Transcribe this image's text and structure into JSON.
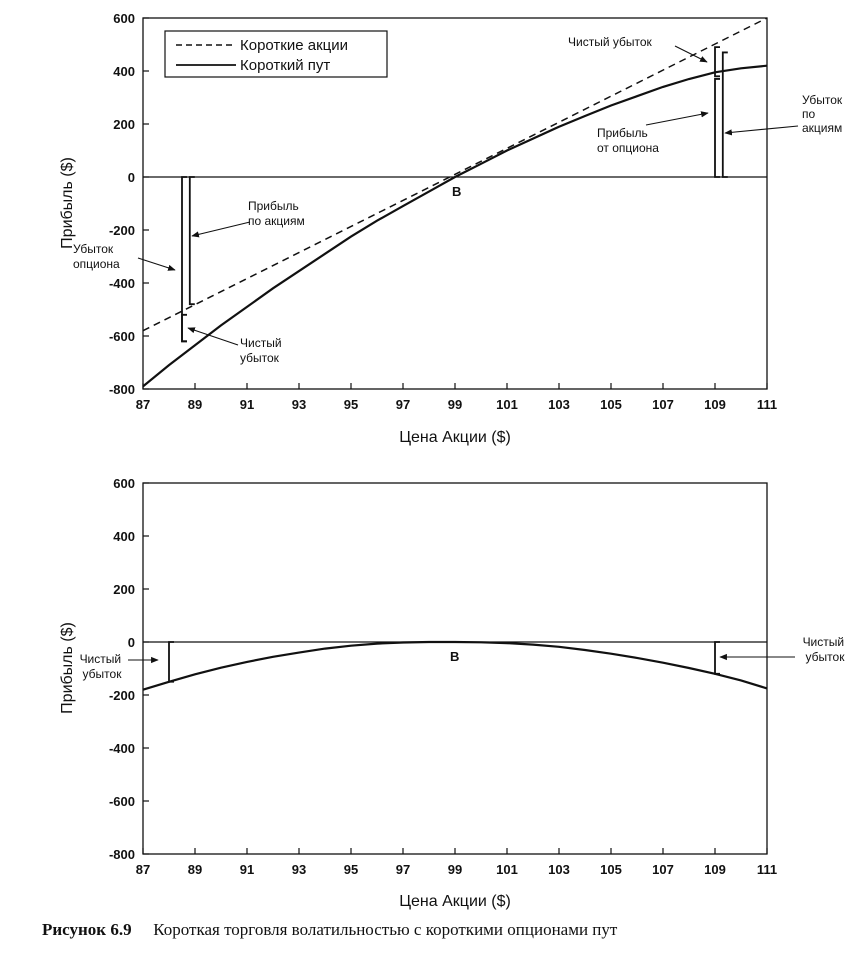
{
  "caption": {
    "number": "Рисунок 6.9",
    "text": "Короткая торговля волатильностью с короткими опционами пут"
  },
  "chart_data": [
    {
      "type": "line",
      "xlabel": "Цена Акции ($)",
      "ylabel": "Прибыль ($)",
      "xlim": [
        87,
        111
      ],
      "ylim": [
        -800,
        600
      ],
      "xticks": [
        "87",
        "89",
        "91",
        "93",
        "95",
        "97",
        "99",
        "101",
        "103",
        "105",
        "107",
        "109",
        "111"
      ],
      "yticks": [
        "600",
        "400",
        "200",
        "0",
        "-200",
        "-400",
        "-600",
        "-800"
      ],
      "legend": {
        "position": "top-left",
        "entries": [
          {
            "label": "Короткие акции",
            "style": "dashed"
          },
          {
            "label": "Короткий пут",
            "style": "solid"
          }
        ]
      },
      "series": [
        {
          "name": "Короткие акции",
          "style": "dashed",
          "x": [
            87,
            111
          ],
          "y": [
            -580,
            600
          ]
        },
        {
          "name": "Короткий пут",
          "style": "solid",
          "x": [
            87,
            88,
            89,
            90,
            91,
            92,
            93,
            94,
            95,
            96,
            97,
            98,
            99,
            100,
            101,
            102,
            103,
            104,
            105,
            106,
            107,
            108,
            109,
            110,
            111
          ],
          "y": [
            -790,
            -710,
            -635,
            -560,
            -490,
            -420,
            -355,
            -290,
            -225,
            -165,
            -110,
            -55,
            0,
            50,
            100,
            145,
            190,
            230,
            270,
            305,
            340,
            370,
            395,
            410,
            420
          ]
        }
      ],
      "points": [
        {
          "label": "B",
          "x": 99,
          "y": 0
        }
      ],
      "annotations": {
        "net_loss_right": "Чистый убыток",
        "stock_loss_right": "Убыток по акциям",
        "option_profit_right": "Прибыль от опциона",
        "stock_profit_left": "Прибыль по акциям",
        "option_loss_left": "Убыток опциона",
        "net_loss_left": "Чистый убыток"
      },
      "brackets": [
        {
          "x": 88.5,
          "y_from": 0,
          "y_to": -620
        },
        {
          "x": 88.8,
          "y_from": 0,
          "y_to": -480
        },
        {
          "x": 88.5,
          "y_from": -520,
          "y_to": -620
        },
        {
          "x": 109,
          "y_from": 0,
          "y_to": 370
        },
        {
          "x": 109.3,
          "y_from": 0,
          "y_to": 470
        },
        {
          "x": 109,
          "y_from": 380,
          "y_to": 490
        }
      ]
    },
    {
      "type": "line",
      "xlabel": "Цена Акции ($)",
      "ylabel": "Прибыль ($)",
      "xlim": [
        87,
        111
      ],
      "ylim": [
        -800,
        600
      ],
      "xticks": [
        "87",
        "89",
        "91",
        "93",
        "95",
        "97",
        "99",
        "101",
        "103",
        "105",
        "107",
        "109",
        "111"
      ],
      "yticks": [
        "600",
        "400",
        "200",
        "0",
        "-200",
        "-400",
        "-600",
        "-800"
      ],
      "series": [
        {
          "style": "solid",
          "x": [
            87,
            88,
            89,
            90,
            91,
            92,
            93,
            94,
            95,
            96,
            97,
            98,
            99,
            100,
            101,
            102,
            103,
            104,
            105,
            106,
            107,
            108,
            109,
            110,
            111
          ],
          "y": [
            -180,
            -150,
            -122,
            -97,
            -75,
            -56,
            -40,
            -25,
            -14,
            -6,
            -2,
            0,
            0,
            -1,
            -4,
            -10,
            -18,
            -30,
            -44,
            -60,
            -78,
            -98,
            -120,
            -145,
            -175
          ]
        }
      ],
      "points": [
        {
          "label": "B",
          "x": 99,
          "y": 0
        }
      ],
      "annotations": {
        "net_loss_left": "Чистый убыток",
        "net_loss_right": "Чистый убыток"
      },
      "brackets": [
        {
          "x": 88,
          "y_from": 0,
          "y_to": -150
        },
        {
          "x": 109,
          "y_from": 0,
          "y_to": -120
        }
      ]
    }
  ]
}
